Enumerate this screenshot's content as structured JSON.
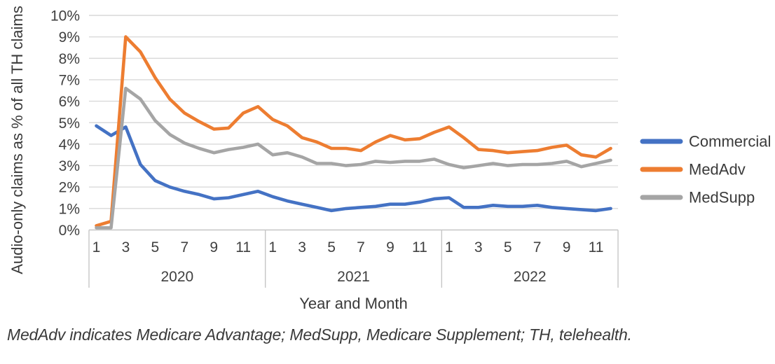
{
  "chart": {
    "y_axis": {
      "title": "Audio-only claims as % of all TH claims",
      "tick_labels": [
        "0%",
        "1%",
        "2%",
        "3%",
        "4%",
        "5%",
        "6%",
        "7%",
        "8%",
        "9%",
        "10%"
      ]
    },
    "x_axis": {
      "title": "Year and Month",
      "month_tick_labels": [
        "1",
        "3",
        "5",
        "7",
        "9",
        "11"
      ],
      "year_labels": [
        "2020",
        "2021",
        "2022"
      ]
    },
    "legend": [
      {
        "label": "Commercial",
        "color": "#4472C4"
      },
      {
        "label": "MedAdv",
        "color": "#ED7D31"
      },
      {
        "label": "MedSupp",
        "color": "#A5A5A5"
      }
    ],
    "colors": {
      "gridline": "#D9D9D9",
      "axis_line": "#C6C6C6",
      "tick_text": "#404040",
      "title_text": "#3a3a3a"
    }
  },
  "chart_data": {
    "type": "line",
    "title": "",
    "xlabel": "Year and Month",
    "ylabel": "Audio-only claims as % of all TH claims",
    "ylim": [
      0,
      10
    ],
    "y_unit": "%",
    "grid": true,
    "legend_position": "right",
    "categories": [
      "2020-1",
      "2020-2",
      "2020-3",
      "2020-4",
      "2020-5",
      "2020-6",
      "2020-7",
      "2020-8",
      "2020-9",
      "2020-10",
      "2020-11",
      "2020-12",
      "2021-1",
      "2021-2",
      "2021-3",
      "2021-4",
      "2021-5",
      "2021-6",
      "2021-7",
      "2021-8",
      "2021-9",
      "2021-10",
      "2021-11",
      "2021-12",
      "2022-1",
      "2022-2",
      "2022-3",
      "2022-4",
      "2022-5",
      "2022-6",
      "2022-7",
      "2022-8",
      "2022-9",
      "2022-10",
      "2022-11",
      "2022-12"
    ],
    "series": [
      {
        "name": "Commercial",
        "color": "#4472C4",
        "values": [
          4.85,
          4.4,
          4.8,
          3.05,
          2.3,
          2.0,
          1.8,
          1.65,
          1.45,
          1.5,
          1.65,
          1.8,
          1.55,
          1.35,
          1.2,
          1.05,
          0.9,
          1.0,
          1.05,
          1.1,
          1.2,
          1.2,
          1.3,
          1.45,
          1.5,
          1.05,
          1.05,
          1.15,
          1.1,
          1.1,
          1.15,
          1.05,
          1.0,
          0.95,
          0.9,
          1.0
        ]
      },
      {
        "name": "MedAdv",
        "color": "#ED7D31",
        "values": [
          0.2,
          0.4,
          9.0,
          8.3,
          7.1,
          6.1,
          5.45,
          5.05,
          4.7,
          4.75,
          5.45,
          5.75,
          5.15,
          4.85,
          4.3,
          4.1,
          3.8,
          3.8,
          3.7,
          4.1,
          4.4,
          4.2,
          4.25,
          4.55,
          4.8,
          4.3,
          3.75,
          3.7,
          3.6,
          3.65,
          3.7,
          3.85,
          3.95,
          3.5,
          3.4,
          3.8
        ]
      },
      {
        "name": "MedSupp",
        "color": "#A5A5A5",
        "values": [
          0.1,
          0.1,
          6.6,
          6.1,
          5.1,
          4.45,
          4.05,
          3.8,
          3.6,
          3.75,
          3.85,
          4.0,
          3.5,
          3.6,
          3.4,
          3.1,
          3.1,
          3.0,
          3.05,
          3.2,
          3.15,
          3.2,
          3.2,
          3.3,
          3.05,
          2.9,
          3.0,
          3.1,
          3.0,
          3.05,
          3.05,
          3.1,
          3.2,
          2.95,
          3.1,
          3.25
        ]
      }
    ]
  },
  "footnote": "MedAdv indicates Medicare Advantage; MedSupp, Medicare Supplement; TH, telehealth."
}
